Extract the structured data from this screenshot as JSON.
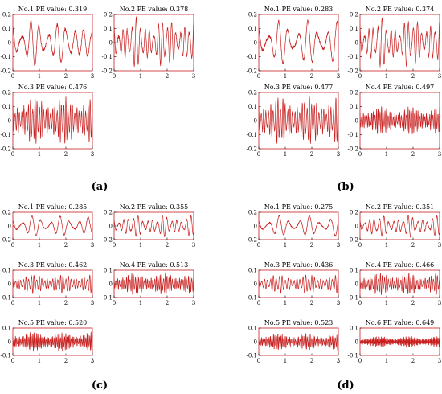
{
  "panel_labels": [
    "(a)",
    "(b)",
    "(c)",
    "(d)"
  ],
  "style": {
    "line_color": "#c81e1e",
    "frame_color": "#c81e1e",
    "axis_color": "#000000"
  },
  "chart_data": [
    {
      "panel": "(a)",
      "subplots": [
        {
          "type": "line",
          "title": "No.1 PE value: 0.319",
          "xlim": [
            0,
            3
          ],
          "ylim": [
            -0.2,
            0.2
          ],
          "xticks": [
            "0",
            "1",
            "2",
            "3"
          ],
          "yticks": [
            "-0.2",
            "-0.1",
            "0",
            "0.1",
            "0.2"
          ],
          "freq": 3.0,
          "amp": 0.17
        },
        {
          "type": "line",
          "title": "No.2 PE value: 0.378",
          "xlim": [
            0,
            3
          ],
          "ylim": [
            -0.2,
            0.2
          ],
          "xticks": [
            "0",
            "1",
            "2",
            "3"
          ],
          "yticks": [
            "-0.2",
            "-0.1",
            "0",
            "0.1",
            "0.2"
          ],
          "freq": 6.0,
          "amp": 0.18
        },
        {
          "type": "line",
          "title": "No.3 PE value: 0.476",
          "xlim": [
            0,
            3
          ],
          "ylim": [
            -0.2,
            0.2
          ],
          "xticks": [
            "0",
            "1",
            "2",
            "3"
          ],
          "yticks": [
            "-0.2",
            "-0.1",
            "0",
            "0.1",
            "0.2"
          ],
          "freq": 12.0,
          "amp": 0.17
        }
      ]
    },
    {
      "panel": "(b)",
      "subplots": [
        {
          "type": "line",
          "title": "No.1 PE value: 0.283",
          "xlim": [
            0,
            3
          ],
          "ylim": [
            -0.2,
            0.2
          ],
          "xticks": [
            "0",
            "1",
            "2",
            "3"
          ],
          "yticks": [
            "-0.2",
            "-0.1",
            "0",
            "0.1",
            "0.2"
          ],
          "freq": 2.7,
          "amp": 0.16
        },
        {
          "type": "line",
          "title": "No.2 PE value: 0.374",
          "xlim": [
            0,
            3
          ],
          "ylim": [
            -0.2,
            0.2
          ],
          "xticks": [
            "0",
            "1",
            "2",
            "3"
          ],
          "yticks": [
            "-0.2",
            "-0.1",
            "0",
            "0.1",
            "0.2"
          ],
          "freq": 6.0,
          "amp": 0.18
        },
        {
          "type": "line",
          "title": "No.3 PE value: 0.477",
          "xlim": [
            0,
            3
          ],
          "ylim": [
            -0.2,
            0.2
          ],
          "xticks": [
            "0",
            "1",
            "2",
            "3"
          ],
          "yticks": [
            "-0.2",
            "-0.1",
            "0",
            "0.1",
            "0.2"
          ],
          "freq": 11.0,
          "amp": 0.17
        },
        {
          "type": "line",
          "title": "No.4 PE value: 0.497",
          "xlim": [
            0,
            3
          ],
          "ylim": [
            -0.2,
            0.2
          ],
          "xticks": [
            "0",
            "1",
            "2",
            "3"
          ],
          "yticks": [
            "-0.2",
            "-0.1",
            "0",
            "0.1",
            "0.2"
          ],
          "freq": 16.0,
          "amp": 0.1
        }
      ]
    },
    {
      "panel": "(c)",
      "subplots": [
        {
          "type": "line",
          "title": "No.1 PE value: 0.285",
          "xlim": [
            0,
            3
          ],
          "ylim": [
            -0.2,
            0.2
          ],
          "xticks": [
            "0",
            "1",
            "2",
            "3"
          ],
          "yticks": [
            "-0.2",
            "0",
            "0.2"
          ],
          "freq": 2.8,
          "amp": 0.15
        },
        {
          "type": "line",
          "title": "No.2 PE value: 0.355",
          "xlim": [
            0,
            3
          ],
          "ylim": [
            -0.2,
            0.2
          ],
          "xticks": [
            "0",
            "1",
            "2",
            "3"
          ],
          "yticks": [
            "-0.2",
            "0",
            "0.2"
          ],
          "freq": 5.5,
          "amp": 0.16
        },
        {
          "type": "line",
          "title": "No.3 PE value: 0.462",
          "xlim": [
            0,
            3
          ],
          "ylim": [
            -0.1,
            0.1
          ],
          "xticks": [
            "0",
            "1",
            "2",
            "3"
          ],
          "yticks": [
            "-0.1",
            "0",
            "0.1"
          ],
          "freq": 10.0,
          "amp": 0.07
        },
        {
          "type": "line",
          "title": "No.4 PE value: 0.513",
          "xlim": [
            0,
            3
          ],
          "ylim": [
            -0.1,
            0.1
          ],
          "xticks": [
            "0",
            "1",
            "2",
            "3"
          ],
          "yticks": [
            "-0.1",
            "0",
            "0.1"
          ],
          "freq": 15.0,
          "amp": 0.08
        },
        {
          "type": "line",
          "title": "No.5 PE value: 0.520",
          "xlim": [
            0,
            3
          ],
          "ylim": [
            -0.1,
            0.1
          ],
          "xticks": [
            "0",
            "1",
            "2",
            "3"
          ],
          "yticks": [
            "-0.1",
            "0",
            "0.1"
          ],
          "freq": 20.0,
          "amp": 0.07
        }
      ]
    },
    {
      "panel": "(d)",
      "subplots": [
        {
          "type": "line",
          "title": "No.1 PE value: 0.275",
          "xlim": [
            0,
            3
          ],
          "ylim": [
            -0.2,
            0.2
          ],
          "xticks": [
            "0",
            "1",
            "2",
            "3"
          ],
          "yticks": [
            "-0.2",
            "0",
            "0.2"
          ],
          "freq": 2.6,
          "amp": 0.15
        },
        {
          "type": "line",
          "title": "No.2 PE value: 0.351",
          "xlim": [
            0,
            3
          ],
          "ylim": [
            -0.2,
            0.2
          ],
          "xticks": [
            "0",
            "1",
            "2",
            "3"
          ],
          "yticks": [
            "-0.2",
            "0",
            "0.2"
          ],
          "freq": 5.5,
          "amp": 0.16
        },
        {
          "type": "line",
          "title": "No.3 PE value: 0.436",
          "xlim": [
            0,
            3
          ],
          "ylim": [
            -0.1,
            0.1
          ],
          "xticks": [
            "0",
            "1",
            "2",
            "3"
          ],
          "yticks": [
            "-0.1",
            "0",
            "0.1"
          ],
          "freq": 9.0,
          "amp": 0.07
        },
        {
          "type": "line",
          "title": "No.4 PE value: 0.466",
          "xlim": [
            0,
            3
          ],
          "ylim": [
            -0.1,
            0.1
          ],
          "xticks": [
            "0",
            "1",
            "2",
            "3"
          ],
          "yticks": [
            "-0.1",
            "0",
            "0.1"
          ],
          "freq": 13.0,
          "amp": 0.08
        },
        {
          "type": "line",
          "title": "No.5 PE value: 0.523",
          "xlim": [
            0,
            3
          ],
          "ylim": [
            -0.1,
            0.1
          ],
          "xticks": [
            "0",
            "1",
            "2",
            "3"
          ],
          "yticks": [
            "-0.1",
            "0",
            "0.1"
          ],
          "freq": 18.0,
          "amp": 0.06
        },
        {
          "type": "line",
          "title": "No.6 PE value: 0.649",
          "xlim": [
            0,
            3
          ],
          "ylim": [
            -0.1,
            0.1
          ],
          "xticks": [
            "0",
            "1",
            "2",
            "3"
          ],
          "yticks": [
            "-0.1",
            "0",
            "0.1"
          ],
          "freq": 26.0,
          "amp": 0.04
        }
      ]
    }
  ]
}
